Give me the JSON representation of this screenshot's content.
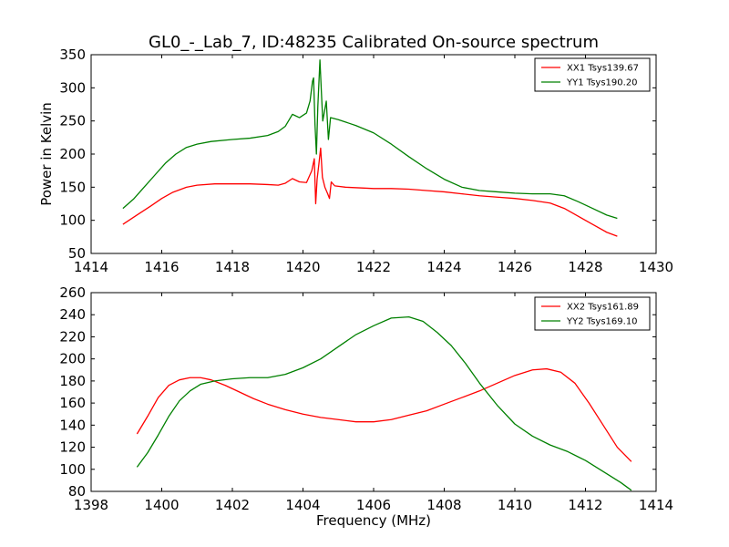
{
  "figure": {
    "title": "GL0_-_Lab_7, ID:48235 Calibrated On-source spectrum"
  },
  "chart_data": [
    {
      "type": "line",
      "ylabel": "Power in Kelvin",
      "xlabel": "",
      "xlim": [
        1414,
        1430
      ],
      "ylim": [
        50,
        350
      ],
      "xticks": [
        1414,
        1416,
        1418,
        1420,
        1422,
        1424,
        1426,
        1428,
        1430
      ],
      "yticks": [
        50,
        100,
        150,
        200,
        250,
        300,
        350
      ],
      "legend_position": "top-right",
      "series": [
        {
          "name": "XX1 Tsys139.67",
          "color": "#ff0000",
          "points": [
            [
              1414.9,
              94
            ],
            [
              1415.3,
              108
            ],
            [
              1415.7,
              122
            ],
            [
              1416.0,
              133
            ],
            [
              1416.3,
              142
            ],
            [
              1416.7,
              150
            ],
            [
              1417.0,
              153
            ],
            [
              1417.5,
              155
            ],
            [
              1418.0,
              155
            ],
            [
              1418.5,
              155
            ],
            [
              1419.0,
              154
            ],
            [
              1419.3,
              153
            ],
            [
              1419.5,
              156
            ],
            [
              1419.7,
              163
            ],
            [
              1419.9,
              158
            ],
            [
              1420.1,
              157
            ],
            [
              1420.25,
              175
            ],
            [
              1420.32,
              193
            ],
            [
              1420.36,
              125
            ],
            [
              1420.4,
              162
            ],
            [
              1420.45,
              185
            ],
            [
              1420.5,
              209
            ],
            [
              1420.55,
              165
            ],
            [
              1420.62,
              150
            ],
            [
              1420.7,
              140
            ],
            [
              1420.75,
              133
            ],
            [
              1420.8,
              158
            ],
            [
              1420.9,
              152
            ],
            [
              1421.2,
              150
            ],
            [
              1421.6,
              149
            ],
            [
              1422.0,
              148
            ],
            [
              1422.5,
              148
            ],
            [
              1423.0,
              147
            ],
            [
              1423.5,
              145
            ],
            [
              1424.0,
              143
            ],
            [
              1424.5,
              140
            ],
            [
              1425.0,
              137
            ],
            [
              1425.5,
              135
            ],
            [
              1426.0,
              133
            ],
            [
              1426.5,
              130
            ],
            [
              1427.0,
              126
            ],
            [
              1427.4,
              118
            ],
            [
              1427.8,
              106
            ],
            [
              1428.2,
              94
            ],
            [
              1428.6,
              82
            ],
            [
              1428.9,
              76
            ]
          ]
        },
        {
          "name": "YY1 Tsys190.20",
          "color": "#008000",
          "points": [
            [
              1414.9,
              118
            ],
            [
              1415.2,
              132
            ],
            [
              1415.5,
              150
            ],
            [
              1415.8,
              168
            ],
            [
              1416.1,
              186
            ],
            [
              1416.4,
              200
            ],
            [
              1416.7,
              210
            ],
            [
              1417.0,
              215
            ],
            [
              1417.4,
              219
            ],
            [
              1418.0,
              222
            ],
            [
              1418.5,
              224
            ],
            [
              1419.0,
              228
            ],
            [
              1419.3,
              234
            ],
            [
              1419.5,
              242
            ],
            [
              1419.7,
              260
            ],
            [
              1419.9,
              255
            ],
            [
              1420.1,
              262
            ],
            [
              1420.2,
              280
            ],
            [
              1420.27,
              310
            ],
            [
              1420.3,
              315
            ],
            [
              1420.34,
              245
            ],
            [
              1420.38,
              200
            ],
            [
              1420.42,
              272
            ],
            [
              1420.48,
              342
            ],
            [
              1420.52,
              295
            ],
            [
              1420.56,
              250
            ],
            [
              1420.6,
              262
            ],
            [
              1420.66,
              280
            ],
            [
              1420.72,
              222
            ],
            [
              1420.78,
              255
            ],
            [
              1421.0,
              252
            ],
            [
              1421.5,
              243
            ],
            [
              1422.0,
              232
            ],
            [
              1422.5,
              215
            ],
            [
              1423.0,
              196
            ],
            [
              1423.5,
              178
            ],
            [
              1424.0,
              162
            ],
            [
              1424.5,
              150
            ],
            [
              1425.0,
              145
            ],
            [
              1425.5,
              143
            ],
            [
              1426.0,
              141
            ],
            [
              1426.5,
              140
            ],
            [
              1427.0,
              140
            ],
            [
              1427.4,
              137
            ],
            [
              1427.8,
              128
            ],
            [
              1428.2,
              118
            ],
            [
              1428.6,
              108
            ],
            [
              1428.9,
              103
            ]
          ]
        }
      ]
    },
    {
      "type": "line",
      "ylabel": "",
      "xlabel": "Frequency (MHz)",
      "xlim": [
        1398,
        1414
      ],
      "ylim": [
        80,
        260
      ],
      "xticks": [
        1398,
        1400,
        1402,
        1404,
        1406,
        1408,
        1410,
        1412,
        1414
      ],
      "yticks": [
        80,
        100,
        120,
        140,
        160,
        180,
        200,
        220,
        240,
        260
      ],
      "legend_position": "top-right",
      "series": [
        {
          "name": "XX2 Tsys161.89",
          "color": "#ff0000",
          "points": [
            [
              1399.3,
              132
            ],
            [
              1399.6,
              148
            ],
            [
              1399.9,
              165
            ],
            [
              1400.2,
              176
            ],
            [
              1400.5,
              181
            ],
            [
              1400.8,
              183
            ],
            [
              1401.1,
              183
            ],
            [
              1401.4,
              181
            ],
            [
              1401.8,
              176
            ],
            [
              1402.2,
              170
            ],
            [
              1402.6,
              164
            ],
            [
              1403.0,
              159
            ],
            [
              1403.5,
              154
            ],
            [
              1404.0,
              150
            ],
            [
              1404.5,
              147
            ],
            [
              1405.0,
              145
            ],
            [
              1405.5,
              143
            ],
            [
              1406.0,
              143
            ],
            [
              1406.5,
              145
            ],
            [
              1407.0,
              149
            ],
            [
              1407.5,
              153
            ],
            [
              1408.0,
              159
            ],
            [
              1408.5,
              165
            ],
            [
              1409.0,
              171
            ],
            [
              1409.5,
              178
            ],
            [
              1410.0,
              185
            ],
            [
              1410.5,
              190
            ],
            [
              1410.9,
              191
            ],
            [
              1411.3,
              188
            ],
            [
              1411.7,
              178
            ],
            [
              1412.1,
              160
            ],
            [
              1412.5,
              140
            ],
            [
              1412.9,
              120
            ],
            [
              1413.3,
              107
            ]
          ]
        },
        {
          "name": "YY2 Tsys169.10",
          "color": "#008000",
          "points": [
            [
              1399.3,
              102
            ],
            [
              1399.6,
              115
            ],
            [
              1399.9,
              131
            ],
            [
              1400.2,
              148
            ],
            [
              1400.5,
              162
            ],
            [
              1400.8,
              171
            ],
            [
              1401.1,
              177
            ],
            [
              1401.5,
              180
            ],
            [
              1402.0,
              182
            ],
            [
              1402.5,
              183
            ],
            [
              1403.0,
              183
            ],
            [
              1403.5,
              186
            ],
            [
              1404.0,
              192
            ],
            [
              1404.5,
              200
            ],
            [
              1405.0,
              211
            ],
            [
              1405.5,
              222
            ],
            [
              1406.0,
              230
            ],
            [
              1406.5,
              237
            ],
            [
              1407.0,
              238
            ],
            [
              1407.4,
              234
            ],
            [
              1407.8,
              224
            ],
            [
              1408.2,
              212
            ],
            [
              1408.6,
              196
            ],
            [
              1409.0,
              178
            ],
            [
              1409.5,
              158
            ],
            [
              1410.0,
              141
            ],
            [
              1410.5,
              130
            ],
            [
              1411.0,
              122
            ],
            [
              1411.5,
              116
            ],
            [
              1412.0,
              108
            ],
            [
              1412.5,
              98
            ],
            [
              1413.0,
              88
            ],
            [
              1413.3,
              81
            ]
          ]
        }
      ]
    }
  ]
}
